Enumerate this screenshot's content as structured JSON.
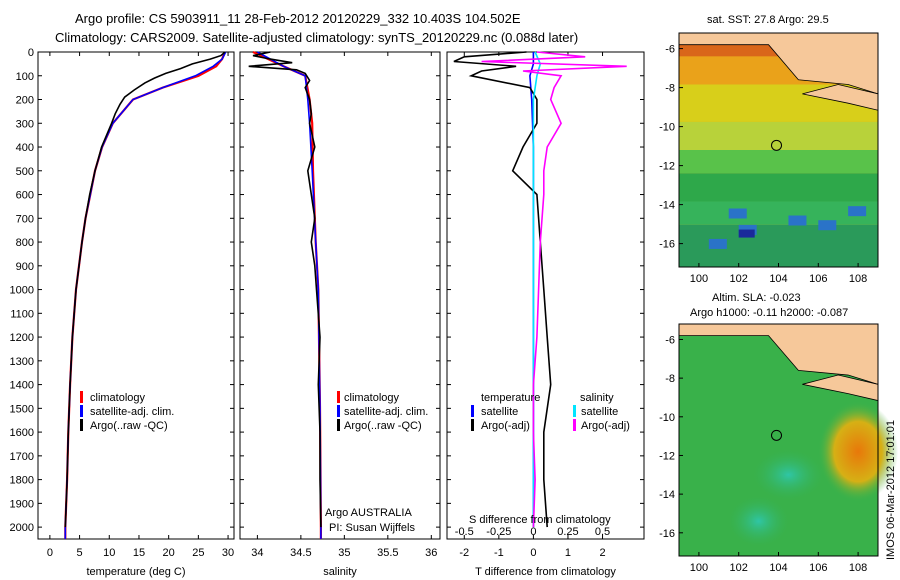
{
  "title_line1": "Argo profile: CS 5903911_11 28-Feb-2012 20120229_332 10.403S 104.502E",
  "title_line2": "Climatology: CARS2009. Satellite-adjusted climatology: synTS_20120229.nc (0.088d later)",
  "credit": "IMOS 06-Mar-2012 17:01:01",
  "colors": {
    "climatology": "#ff0000",
    "satellite": "#0000ff",
    "argo": "#000000",
    "sat_diff": "#00e5ff",
    "argo_sal_diff": "#ff00ff"
  },
  "map_sst": {
    "title": "sat. SST: 27.8  Argo: 29.5",
    "colorscale": "warm-sst"
  },
  "map_sla": {
    "title": "Altim. SLA: -0.023",
    "subtitle": "Argo h1000: -0.11  h2000: -0.087",
    "colorscale": "green-sla"
  },
  "legend_tsal": {
    "items": [
      "climatology",
      "satellite-adj. clim.",
      "Argo(..raw -QC)"
    ]
  },
  "legend_sal": {
    "items": [
      "climatology",
      "satellite-adj. clim.",
      "Argo(..raw -QC)"
    ]
  },
  "legend_diff": {
    "temp_header": "temperature",
    "sal_header": "salinity",
    "sat": "satellite",
    "argo": "Argo(-adj)"
  },
  "float_info": {
    "line1": "Argo AUSTRALIA",
    "line2": "PI: Susan Wijffels"
  },
  "diff_labels": {
    "s_caption": "S difference from climatology"
  },
  "chart_data": [
    {
      "type": "line",
      "xlabel": "temperature (deg C)",
      "ylabel": "",
      "xlim": [
        -2,
        31
      ],
      "ylim": [
        2050,
        0
      ],
      "xticks": [
        0,
        5,
        10,
        15,
        20,
        25,
        30
      ],
      "yticks": [
        0,
        100,
        200,
        300,
        400,
        500,
        600,
        700,
        800,
        900,
        1000,
        1100,
        1200,
        1300,
        1400,
        1500,
        1600,
        1700,
        1800,
        1900,
        2000
      ],
      "series": [
        {
          "name": "climatology",
          "depth": [
            0,
            30,
            60,
            100,
            150,
            200,
            300,
            400,
            500,
            600,
            700,
            800,
            900,
            1000,
            1200,
            1400,
            1600,
            1800,
            2000,
            2050
          ],
          "values": [
            29.5,
            29,
            28,
            25,
            19,
            14,
            10.6,
            8.8,
            7.6,
            6.8,
            6,
            5.4,
            4.9,
            4.4,
            3.8,
            3.4,
            3.1,
            2.9,
            2.6,
            2.6
          ]
        },
        {
          "name": "satellite-adj. clim.",
          "depth": [
            0,
            30,
            60,
            100,
            150,
            200,
            300,
            400,
            500,
            600,
            700,
            800,
            900,
            1000,
            1200,
            1400,
            1600,
            1800,
            2000,
            2050
          ],
          "values": [
            29.6,
            29,
            27.5,
            24.5,
            19,
            14,
            10.6,
            8.8,
            7.6,
            6.8,
            6,
            5.4,
            4.9,
            4.4,
            3.8,
            3.4,
            3.1,
            2.9,
            2.6,
            2.6
          ]
        },
        {
          "name": "Argo(..raw -QC)",
          "depth": [
            0,
            15,
            30,
            50,
            70,
            90,
            110,
            130,
            160,
            190,
            220,
            260,
            300,
            400,
            500,
            600,
            700,
            800,
            900,
            1000,
            1200,
            1400,
            1600,
            1800,
            2000
          ],
          "values": [
            29.5,
            28.8,
            27,
            24,
            22,
            19.5,
            17.6,
            16,
            14.2,
            12.6,
            11.8,
            11,
            10.4,
            8.7,
            7.6,
            6.7,
            6,
            5.4,
            4.9,
            4.4,
            3.8,
            3.4,
            3.1,
            2.9,
            2.6
          ]
        }
      ]
    },
    {
      "type": "line",
      "xlabel": "salinity",
      "ylabel": "",
      "xlim": [
        33.8,
        36.1
      ],
      "ylim": [
        2050,
        0
      ],
      "xticks": [
        34,
        34.5,
        35,
        35.5,
        36
      ],
      "series": [
        {
          "name": "climatology",
          "depth": [
            0,
            60,
            100,
            200,
            300,
            500,
            800,
            1000,
            1500,
            2000,
            2050
          ],
          "values": [
            33.95,
            34.3,
            34.55,
            34.6,
            34.63,
            34.64,
            34.67,
            34.7,
            34.72,
            34.73,
            34.73
          ]
        },
        {
          "name": "satellite-adj. clim.",
          "depth": [
            0,
            60,
            100,
            200,
            300,
            500,
            800,
            1000,
            1500,
            2000,
            2050
          ],
          "values": [
            34.0,
            34.3,
            34.55,
            34.58,
            34.6,
            34.63,
            34.67,
            34.7,
            34.72,
            34.73,
            34.73
          ]
        },
        {
          "name": "Argo(..raw -QC)",
          "depth": [
            0,
            15,
            30,
            45,
            60,
            75,
            90,
            120,
            150,
            200,
            260,
            300,
            400,
            500,
            600,
            700,
            800,
            900,
            1000,
            1200,
            1400,
            1600,
            1800,
            2000
          ],
          "values": [
            34.15,
            33.95,
            34.15,
            34.4,
            33.9,
            34.45,
            34.55,
            34.6,
            34.55,
            34.6,
            34.62,
            34.6,
            34.66,
            34.58,
            34.62,
            34.66,
            34.62,
            34.66,
            34.68,
            34.72,
            34.7,
            34.72,
            34.72,
            34.73
          ]
        }
      ]
    },
    {
      "type": "line",
      "xlabel": "T difference from climatology",
      "ylabel": "",
      "xlim": [
        -2.5,
        3.2
      ],
      "ylim": [
        2050,
        0
      ],
      "xticks": [
        -2,
        -1,
        0,
        1,
        2
      ],
      "xticks_top_labels": [
        "-0.5",
        "-0.25",
        "0",
        "0.25",
        "0.5"
      ],
      "series": [
        {
          "name": "temperature satellite",
          "depth": [
            0,
            50,
            100,
            200,
            400,
            800,
            1200,
            1600,
            2000
          ],
          "values": [
            0,
            0,
            -0.1,
            -0.05,
            0,
            0,
            0,
            0,
            0
          ]
        },
        {
          "name": "temperature Argo(-adj)",
          "depth": [
            0,
            20,
            40,
            60,
            80,
            100,
            150,
            200,
            300,
            400,
            500,
            600,
            800,
            1000,
            1200,
            1400,
            1600,
            1800,
            2000
          ],
          "values": [
            -0.2,
            -2,
            -2.3,
            -0.5,
            -1.5,
            -1.8,
            -0.1,
            0.1,
            0.1,
            -0.3,
            -0.6,
            0.1,
            0.2,
            0.3,
            0.4,
            0.5,
            0.3,
            0.3,
            0.4
          ]
        },
        {
          "name": "salinity satellite",
          "depth": [
            0,
            50,
            100,
            200,
            400,
            800,
            1200,
            1600,
            2000
          ],
          "values": [
            0.05,
            0.2,
            0.1,
            0.0,
            0.0,
            0.0,
            0.0,
            0.0,
            0.0
          ]
        },
        {
          "name": "salinity Argo(-adj)",
          "depth": [
            0,
            20,
            40,
            60,
            80,
            100,
            150,
            200,
            300,
            400,
            500,
            600,
            800,
            1000,
            1200,
            1400,
            1600,
            1800,
            2000
          ],
          "values": [
            0.1,
            1.5,
            -1.5,
            2.7,
            -0.3,
            0.8,
            0.6,
            0.5,
            0.8,
            0.4,
            0.3,
            0.3,
            0.2,
            0.15,
            0.1,
            0.0,
            0.0,
            0.05,
            0.0
          ]
        }
      ]
    }
  ],
  "map_axes": {
    "sst_lon_ticks": [
      "100",
      "102",
      "104",
      "106",
      "108"
    ],
    "sst_lat_ticks": [
      "-6",
      "-8",
      "-10",
      "-12",
      "-14",
      "-16"
    ],
    "sla_lon_ticks": [
      "100",
      "102",
      "104",
      "106",
      "108"
    ],
    "sla_lat_ticks": [
      "-6",
      "-8",
      "-10",
      "-12",
      "-14",
      "-16"
    ]
  }
}
